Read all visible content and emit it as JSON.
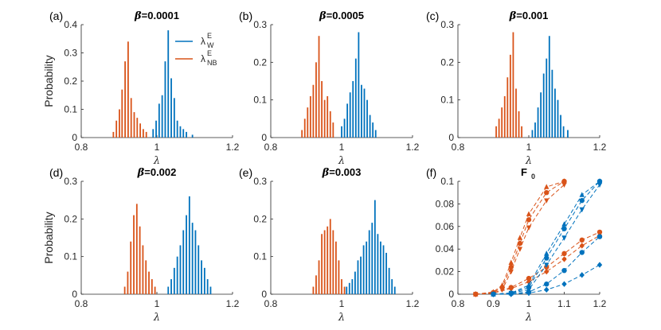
{
  "colors": {
    "W": "#0072BD",
    "NB": "#D95319",
    "axis": "#262626"
  },
  "legend": {
    "w_symbol": "λ",
    "w_sup": "E",
    "w_sub": "W",
    "nb_symbol": "λ",
    "nb_sup": "E",
    "nb_sub": "NB"
  },
  "chart_data": [
    {
      "type": "bar",
      "panel": "(a)",
      "title_prefix": "β",
      "title_value": "=0.0001",
      "xlabel": "λ",
      "ylabel": "Probability",
      "xlim": [
        0.8,
        1.2
      ],
      "ylim": [
        0,
        0.4
      ],
      "xticks": [
        0.8,
        1,
        1.2
      ],
      "xticklabels": [
        "0.8",
        "1",
        "1.2"
      ],
      "yticks": [
        0,
        0.1,
        0.2,
        0.3,
        0.4
      ],
      "yticklabels": [
        "0",
        "0.1",
        "0.2",
        "0.3",
        "0.4"
      ],
      "series": [
        {
          "name": "NB",
          "x": [
            0.885,
            0.893,
            0.901,
            0.908,
            0.916,
            0.924,
            0.932,
            0.94,
            0.948,
            0.956,
            0.964,
            0.972
          ],
          "values": [
            0.02,
            0.06,
            0.1,
            0.17,
            0.27,
            0.34,
            0.14,
            0.09,
            0.07,
            0.05,
            0.03,
            0.02
          ]
        },
        {
          "name": "W",
          "x": [
            0.99,
            0.998,
            1.006,
            1.014,
            1.022,
            1.03,
            1.038,
            1.046,
            1.054,
            1.062,
            1.07,
            1.078,
            1.094
          ],
          "values": [
            0.03,
            0.06,
            0.12,
            0.15,
            0.27,
            0.38,
            0.21,
            0.14,
            0.06,
            0.04,
            0.03,
            0.02,
            0.01
          ]
        }
      ]
    },
    {
      "type": "bar",
      "panel": "(b)",
      "title_prefix": "β",
      "title_value": "=0.0005",
      "xlabel": "λ",
      "xlim": [
        0.8,
        1.2
      ],
      "ylim": [
        0,
        0.3
      ],
      "xticks": [
        0.8,
        1,
        1.2
      ],
      "xticklabels": [
        "0.8",
        "1",
        "1.2"
      ],
      "yticks": [
        0,
        0.1,
        0.2,
        0.3
      ],
      "yticklabels": [
        "0",
        "0.1",
        "0.2",
        "0.3"
      ],
      "series": [
        {
          "name": "NB",
          "x": [
            0.888,
            0.896,
            0.904,
            0.912,
            0.92,
            0.928,
            0.936,
            0.944,
            0.952,
            0.96,
            0.968,
            0.976
          ],
          "values": [
            0.02,
            0.05,
            0.08,
            0.11,
            0.14,
            0.2,
            0.27,
            0.15,
            0.1,
            0.11,
            0.07,
            0.04
          ]
        },
        {
          "name": "W",
          "x": [
            1.0,
            1.008,
            1.016,
            1.024,
            1.032,
            1.04,
            1.048,
            1.056,
            1.064,
            1.072,
            1.08,
            1.088,
            1.096
          ],
          "values": [
            0.03,
            0.05,
            0.09,
            0.12,
            0.15,
            0.21,
            0.28,
            0.14,
            0.13,
            0.1,
            0.06,
            0.04,
            0.02
          ]
        }
      ]
    },
    {
      "type": "bar",
      "panel": "(c)",
      "title_prefix": "β",
      "title_value": "=0.001",
      "xlabel": "λ",
      "xlim": [
        0.8,
        1.2
      ],
      "ylim": [
        0,
        0.3
      ],
      "xticks": [
        0.8,
        1,
        1.2
      ],
      "xticklabels": [
        "0.8",
        "1",
        "1.2"
      ],
      "yticks": [
        0,
        0.1,
        0.2,
        0.3
      ],
      "yticklabels": [
        "0",
        "0.1",
        "0.2",
        "0.3"
      ],
      "series": [
        {
          "name": "NB",
          "x": [
            0.908,
            0.916,
            0.924,
            0.932,
            0.94,
            0.948,
            0.956,
            0.964,
            0.972,
            0.98
          ],
          "values": [
            0.03,
            0.05,
            0.08,
            0.11,
            0.16,
            0.22,
            0.28,
            0.13,
            0.07,
            0.03
          ]
        },
        {
          "name": "W",
          "x": [
            1.01,
            1.018,
            1.026,
            1.034,
            1.042,
            1.05,
            1.058,
            1.066,
            1.074,
            1.082,
            1.09,
            1.098,
            1.11
          ],
          "values": [
            0.02,
            0.04,
            0.08,
            0.12,
            0.17,
            0.21,
            0.27,
            0.18,
            0.13,
            0.1,
            0.06,
            0.03,
            0.02
          ]
        }
      ]
    },
    {
      "type": "bar",
      "panel": "(d)",
      "title_prefix": "β",
      "title_value": "=0.002",
      "xlabel": "λ",
      "ylabel": "Probability",
      "xlim": [
        0.8,
        1.2
      ],
      "ylim": [
        0,
        0.3
      ],
      "xticks": [
        0.8,
        1,
        1.2
      ],
      "xticklabels": [
        "0.8",
        "1",
        "1.2"
      ],
      "yticks": [
        0,
        0.1,
        0.2,
        0.3
      ],
      "yticklabels": [
        "0",
        "0.1",
        "0.2",
        "0.3"
      ],
      "series": [
        {
          "name": "NB",
          "x": [
            0.915,
            0.923,
            0.931,
            0.939,
            0.947,
            0.955,
            0.963,
            0.971,
            0.979,
            0.987,
            0.995
          ],
          "values": [
            0.02,
            0.06,
            0.14,
            0.21,
            0.24,
            0.18,
            0.13,
            0.09,
            0.06,
            0.04,
            0.02
          ]
        },
        {
          "name": "W",
          "x": [
            1.03,
            1.038,
            1.046,
            1.054,
            1.062,
            1.07,
            1.078,
            1.086,
            1.094,
            1.102,
            1.11,
            1.118,
            1.126,
            1.134,
            1.142
          ],
          "values": [
            0.02,
            0.04,
            0.07,
            0.1,
            0.13,
            0.17,
            0.21,
            0.26,
            0.19,
            0.17,
            0.13,
            0.09,
            0.07,
            0.04,
            0.02
          ]
        }
      ]
    },
    {
      "type": "bar",
      "panel": "(e)",
      "title_prefix": "β",
      "title_value": "=0.003",
      "xlabel": "λ",
      "xlim": [
        0.8,
        1.2
      ],
      "ylim": [
        0,
        0.3
      ],
      "xticks": [
        0.8,
        1,
        1.2
      ],
      "xticklabels": [
        "0.8",
        "1",
        "1.2"
      ],
      "yticks": [
        0,
        0.1,
        0.2,
        0.3
      ],
      "yticklabels": [
        "0",
        "0.1",
        "0.2",
        "0.3"
      ],
      "series": [
        {
          "name": "NB",
          "x": [
            0.92,
            0.928,
            0.936,
            0.944,
            0.952,
            0.96,
            0.968,
            0.976,
            0.984,
            0.992,
            1.0,
            1.008
          ],
          "values": [
            0.02,
            0.05,
            0.09,
            0.16,
            0.17,
            0.18,
            0.2,
            0.17,
            0.14,
            0.09,
            0.04,
            0.02
          ]
        },
        {
          "name": "W",
          "x": [
            1.014,
            1.022,
            1.03,
            1.038,
            1.046,
            1.054,
            1.062,
            1.07,
            1.078,
            1.086,
            1.094,
            1.102,
            1.11,
            1.118,
            1.126,
            1.134,
            1.142,
            1.15
          ],
          "values": [
            0.02,
            0.03,
            0.04,
            0.06,
            0.09,
            0.1,
            0.13,
            0.14,
            0.17,
            0.19,
            0.25,
            0.16,
            0.14,
            0.13,
            0.11,
            0.07,
            0.04,
            0.02
          ]
        }
      ]
    },
    {
      "type": "line",
      "panel": "(f)",
      "title": "F",
      "title_sub": "0",
      "xlabel": "λ",
      "xlim": [
        0.8,
        1.2
      ],
      "ylim": [
        0,
        0.1
      ],
      "xticks": [
        0.8,
        0.9,
        1,
        1.1,
        1.2
      ],
      "xticklabels": [
        "0.8",
        "0.9",
        "1",
        "1.1",
        "1.2"
      ],
      "yticks": [
        0,
        0.02,
        0.04,
        0.06,
        0.08,
        0.1
      ],
      "yticklabels": [
        "0",
        "0.02",
        "0.04",
        "0.06",
        "0.08",
        "0.1"
      ],
      "series": [
        {
          "name": "NB-1",
          "color": "NB",
          "marker": "triangle-up",
          "x": [
            0.85,
            0.9,
            0.925,
            0.95,
            0.975,
            1.0,
            1.05,
            1.1
          ],
          "y": [
            0.0,
            0.002,
            0.008,
            0.028,
            0.05,
            0.071,
            0.095,
            0.1
          ]
        },
        {
          "name": "NB-2",
          "color": "NB",
          "marker": "circle",
          "x": [
            0.85,
            0.9,
            0.925,
            0.95,
            0.975,
            1.0,
            1.05,
            1.1
          ],
          "y": [
            0.0,
            0.0015,
            0.006,
            0.024,
            0.045,
            0.066,
            0.09,
            0.1
          ]
        },
        {
          "name": "NB-3",
          "color": "NB",
          "marker": "triangle-down",
          "x": [
            0.85,
            0.9,
            0.925,
            0.95,
            0.975,
            1.0,
            1.05,
            1.1
          ],
          "y": [
            0.0,
            0.001,
            0.004,
            0.02,
            0.04,
            0.059,
            0.083,
            0.097
          ]
        },
        {
          "name": "NB-4",
          "color": "NB",
          "marker": "circle",
          "x": [
            0.85,
            0.9,
            0.95,
            1.0,
            1.05,
            1.1,
            1.15,
            1.2
          ],
          "y": [
            0.0,
            0.001,
            0.006,
            0.014,
            0.024,
            0.036,
            0.048,
            0.055
          ]
        },
        {
          "name": "NB-5",
          "color": "NB",
          "marker": "diamond",
          "x": [
            0.85,
            0.9,
            0.95,
            1.0,
            1.05,
            1.1,
            1.15,
            1.2
          ],
          "y": [
            0.0,
            0.001,
            0.005,
            0.011,
            0.02,
            0.031,
            0.043,
            0.052
          ]
        },
        {
          "name": "W-1",
          "color": "W",
          "marker": "triangle-up",
          "x": [
            0.9,
            0.95,
            1.0,
            1.05,
            1.1,
            1.15,
            1.2
          ],
          "y": [
            0.0,
            0.001,
            0.008,
            0.036,
            0.062,
            0.088,
            0.1
          ]
        },
        {
          "name": "W-2",
          "color": "W",
          "marker": "circle",
          "x": [
            0.9,
            0.95,
            1.0,
            1.05,
            1.1,
            1.15,
            1.2
          ],
          "y": [
            0.0,
            0.001,
            0.006,
            0.032,
            0.058,
            0.083,
            0.1
          ]
        },
        {
          "name": "W-3",
          "color": "W",
          "marker": "triangle-down",
          "x": [
            0.9,
            0.95,
            1.0,
            1.05,
            1.1,
            1.15,
            1.2
          ],
          "y": [
            0.0,
            0.001,
            0.004,
            0.026,
            0.05,
            0.075,
            0.097
          ]
        },
        {
          "name": "W-4",
          "color": "W",
          "marker": "circle",
          "x": [
            0.9,
            0.95,
            1.0,
            1.05,
            1.1,
            1.15,
            1.2
          ],
          "y": [
            0.0,
            0.0005,
            0.002,
            0.009,
            0.021,
            0.037,
            0.051
          ]
        },
        {
          "name": "W-5",
          "color": "W",
          "marker": "diamond",
          "x": [
            0.9,
            0.95,
            1.0,
            1.05,
            1.1,
            1.15,
            1.2
          ],
          "y": [
            0.0,
            0.0,
            0.001,
            0.004,
            0.009,
            0.017,
            0.026
          ]
        }
      ]
    }
  ]
}
